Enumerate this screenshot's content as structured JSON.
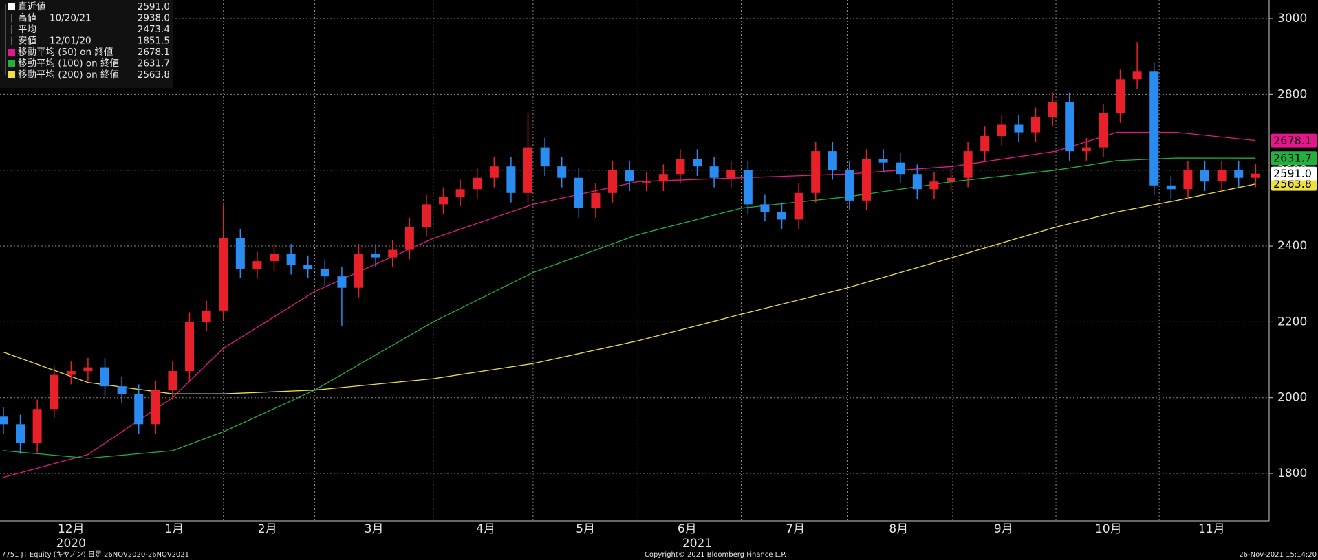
{
  "chart_data": {
    "type": "candlestick",
    "up_color": "#e8202a",
    "down_color": "#2a8cf0",
    "open": [
      1950,
      1930,
      1880,
      1970,
      2060,
      2070,
      2080,
      2030,
      2010,
      1930,
      2020,
      2070,
      2200,
      2230,
      2420,
      2340,
      2360,
      2380,
      2350,
      2340,
      2320,
      2290,
      2380,
      2370,
      2390,
      2450,
      2510,
      2530,
      2550,
      2580,
      2610,
      2540,
      2660,
      2610,
      2580,
      2500,
      2540,
      2600,
      2570,
      2570,
      2590,
      2630,
      2610,
      2580,
      2600,
      2510,
      2490,
      2470,
      2540,
      2650,
      2600,
      2520,
      2630,
      2620,
      2590,
      2550,
      2570,
      2580,
      2650,
      2690,
      2720,
      2700,
      2740,
      2780,
      2650,
      2660,
      2750,
      2840,
      2860,
      2560,
      2550,
      2600,
      2570,
      2600,
      2580
    ],
    "high": [
      1975,
      1955,
      1995,
      2085,
      2095,
      2105,
      2105,
      2055,
      2035,
      2045,
      2095,
      2225,
      2255,
      2510,
      2445,
      2385,
      2405,
      2405,
      2375,
      2365,
      2345,
      2405,
      2405,
      2415,
      2475,
      2535,
      2555,
      2575,
      2605,
      2635,
      2635,
      2750,
      2685,
      2635,
      2605,
      2565,
      2625,
      2625,
      2595,
      2615,
      2655,
      2655,
      2635,
      2625,
      2625,
      2535,
      2515,
      2565,
      2675,
      2675,
      2625,
      2655,
      2655,
      2645,
      2615,
      2595,
      2605,
      2675,
      2715,
      2745,
      2745,
      2765,
      2805,
      2805,
      2685,
      2775,
      2865,
      2938,
      2885,
      2585,
      2625,
      2625,
      2625,
      2625,
      2616
    ],
    "low": [
      1905,
      1851.5,
      1855,
      1945,
      2035,
      2045,
      2005,
      1985,
      1905,
      1905,
      1995,
      2045,
      2175,
      2205,
      2315,
      2315,
      2335,
      2325,
      2315,
      2295,
      2190,
      2265,
      2345,
      2345,
      2365,
      2425,
      2485,
      2505,
      2525,
      2555,
      2515,
      2515,
      2585,
      2555,
      2475,
      2475,
      2515,
      2545,
      2545,
      2545,
      2565,
      2585,
      2555,
      2555,
      2485,
      2465,
      2445,
      2445,
      2515,
      2575,
      2495,
      2495,
      2595,
      2565,
      2525,
      2525,
      2545,
      2555,
      2625,
      2665,
      2675,
      2675,
      2715,
      2625,
      2625,
      2635,
      2725,
      2815,
      2535,
      2525,
      2525,
      2545,
      2545,
      2555,
      2555
    ],
    "close": [
      1930,
      1880,
      1970,
      2060,
      2070,
      2080,
      2030,
      2010,
      1930,
      2020,
      2070,
      2200,
      2230,
      2420,
      2340,
      2360,
      2380,
      2350,
      2340,
      2320,
      2290,
      2380,
      2370,
      2390,
      2450,
      2510,
      2530,
      2550,
      2580,
      2610,
      2540,
      2660,
      2610,
      2580,
      2500,
      2540,
      2600,
      2570,
      2570,
      2590,
      2630,
      2610,
      2580,
      2600,
      2510,
      2490,
      2470,
      2540,
      2650,
      2600,
      2520,
      2630,
      2620,
      2590,
      2550,
      2570,
      2580,
      2650,
      2690,
      2720,
      2700,
      2740,
      2780,
      2650,
      2660,
      2750,
      2840,
      2860,
      2560,
      2550,
      2600,
      2570,
      2600,
      2580,
      2591
    ],
    "series": [
      {
        "name": "移動平均 (50) on 終値",
        "last_label": "2678.1",
        "color": "#e4188c",
        "x": [
          0,
          5,
          10,
          13,
          18.4,
          25.4,
          31.3,
          37.5,
          43.6,
          49.9,
          56.1,
          62.2,
          65.8,
          69.3,
          74
        ],
        "values": [
          1790,
          1850,
          2000,
          2130,
          2280,
          2420,
          2510,
          2570,
          2580,
          2590,
          2610,
          2650,
          2700,
          2700,
          2678.1
        ]
      },
      {
        "name": "移動平均 (100) on 終値",
        "last_label": "2631.7",
        "color": "#22b040",
        "x": [
          0,
          5,
          10,
          13,
          18.4,
          25.4,
          31.3,
          37.5,
          43.6,
          49.9,
          56.1,
          62.2,
          65.8,
          69.3,
          74
        ],
        "values": [
          1860,
          1840,
          1860,
          1910,
          2020,
          2200,
          2330,
          2430,
          2500,
          2530,
          2570,
          2600,
          2625,
          2632,
          2631.7
        ]
      },
      {
        "name": "移動平均 (200) on 終値",
        "last_label": "2563.8",
        "color": "#eee040",
        "x": [
          0,
          5,
          10,
          13,
          18.4,
          25.4,
          31.3,
          37.5,
          43.6,
          49.9,
          56.1,
          62.2,
          65.8,
          69.3,
          74
        ],
        "values": [
          2120,
          2040,
          2010,
          2010,
          2020,
          2050,
          2090,
          2150,
          2220,
          2290,
          2370,
          2450,
          2490,
          2520,
          2563.8
        ]
      }
    ],
    "stats": [
      {
        "name": "直近値",
        "value": "2591.0"
      },
      {
        "name": "高値",
        "date": "10/20/21",
        "value": "2938.0"
      },
      {
        "name": "平均",
        "value": "2473.4"
      },
      {
        "name": "安値",
        "date": "12/01/20",
        "value": "1851.5"
      }
    ],
    "ylim": [
      1675,
      3049
    ],
    "yticks": [
      1800,
      2000,
      2200,
      2400,
      2600,
      2800,
      3000
    ],
    "xlim": [
      -0.2,
      74.8
    ],
    "xticks": [
      {
        "value": 4,
        "label": "12月"
      },
      {
        "value": 10.1,
        "label": "1月"
      },
      {
        "value": 15.6,
        "label": "2月"
      },
      {
        "value": 21.9,
        "label": "3月"
      },
      {
        "value": 28.5,
        "label": "4月"
      },
      {
        "value": 34.4,
        "label": "5月"
      },
      {
        "value": 40.4,
        "label": "6月"
      },
      {
        "value": 46.8,
        "label": "7月"
      },
      {
        "value": 52.9,
        "label": "8月"
      },
      {
        "value": 59.1,
        "label": "9月"
      },
      {
        "value": 65.3,
        "label": "10月"
      },
      {
        "value": 71.4,
        "label": "11月"
      }
    ],
    "x_grid": [
      7.3,
      13,
      18.4,
      25.4,
      31.3,
      37.5,
      43.6,
      49.9,
      56.1,
      62.2,
      68.3
    ],
    "year_labels": [
      {
        "value": 4,
        "label": "2020"
      },
      {
        "value": 41,
        "label": "2021"
      }
    ],
    "grid": true,
    "footer": {
      "left": "7751 JT Equity (キヤノン)  日足 26NOV2020-26NOV2021",
      "center": "Copyright© 2021 Bloomberg Finance L.P.",
      "right": "26-Nov-2021 15:14:20"
    }
  }
}
